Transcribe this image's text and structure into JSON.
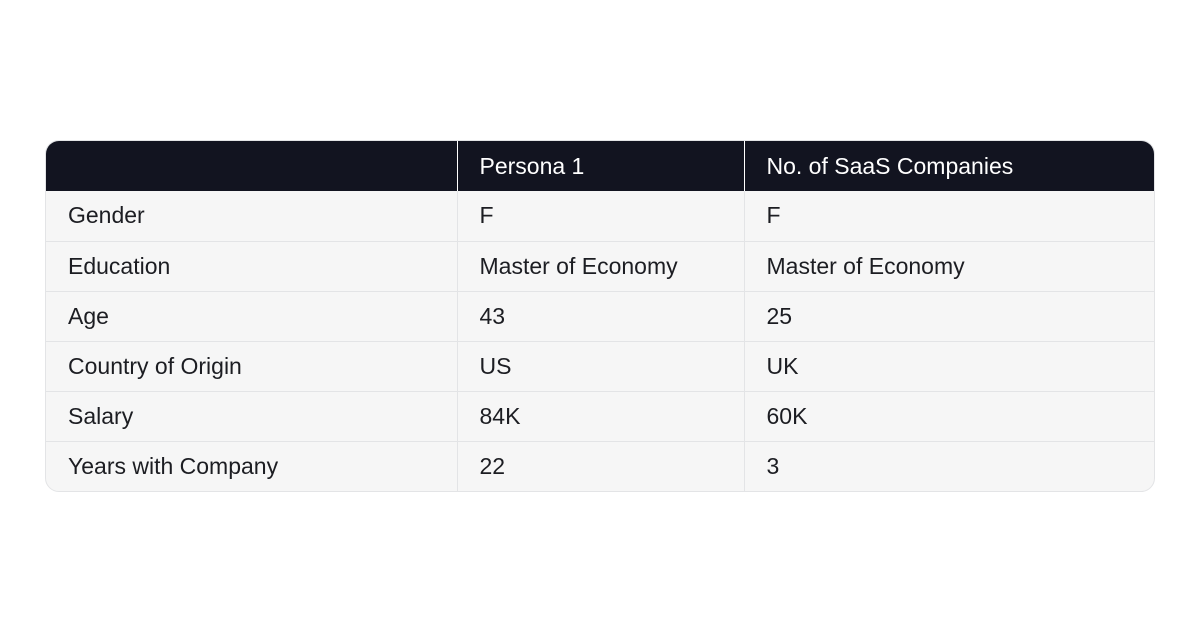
{
  "table": {
    "headers": [
      "",
      "Persona 1",
      "No. of SaaS Companies"
    ],
    "rows": [
      [
        "Gender",
        "F",
        "F"
      ],
      [
        "Education",
        "Master of Economy",
        "Master of Economy"
      ],
      [
        "Age",
        "43",
        "25"
      ],
      [
        "Country of Origin",
        "US",
        "UK"
      ],
      [
        "Salary",
        "84K",
        "60K"
      ],
      [
        "Years with Company",
        "22",
        "3"
      ]
    ]
  },
  "colors": {
    "header_bg": "#121420",
    "body_bg": "#f6f6f6",
    "border": "#e3e4e6"
  }
}
